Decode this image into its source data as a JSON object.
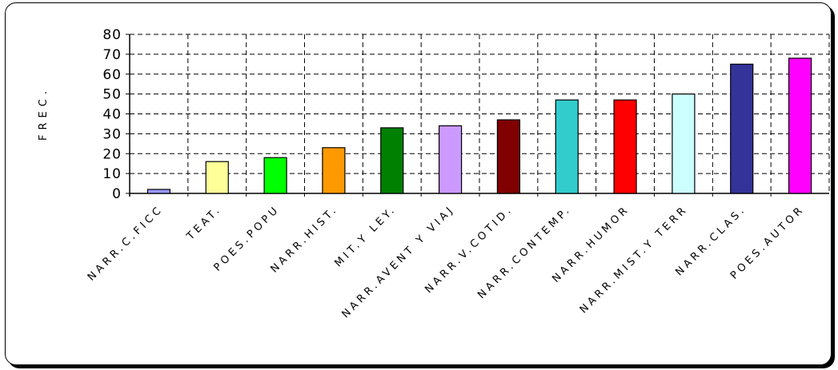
{
  "chart_data": {
    "type": "bar",
    "title": "",
    "xlabel": "",
    "ylabel": "FREC.",
    "ylim": [
      0,
      80
    ],
    "yticks": [
      0,
      10,
      20,
      30,
      40,
      50,
      60,
      70,
      80
    ],
    "grid": true,
    "legend": "none",
    "categories": [
      "NARR.C.FICC",
      "TEAT.",
      "POES.POPU",
      "NARR.HIST.",
      "MIT.Y LEY.",
      "NARR.AVENT Y VIAJ",
      "NARR.V.COTID.",
      "NARR.CONTEMP.",
      "NARR.HUMOR",
      "NARR.MIST.Y TERR",
      "NARR.CLAS.",
      "POES.AUTOR"
    ],
    "values": [
      2,
      16,
      18,
      23,
      33,
      34,
      37,
      47,
      47,
      50,
      65,
      68
    ],
    "colors": [
      "#9999ff",
      "#ffff99",
      "#00ff00",
      "#ff9900",
      "#008000",
      "#cc99ff",
      "#800000",
      "#33cccc",
      "#ff0000",
      "#ccffff",
      "#333399",
      "#ff00ff"
    ]
  }
}
